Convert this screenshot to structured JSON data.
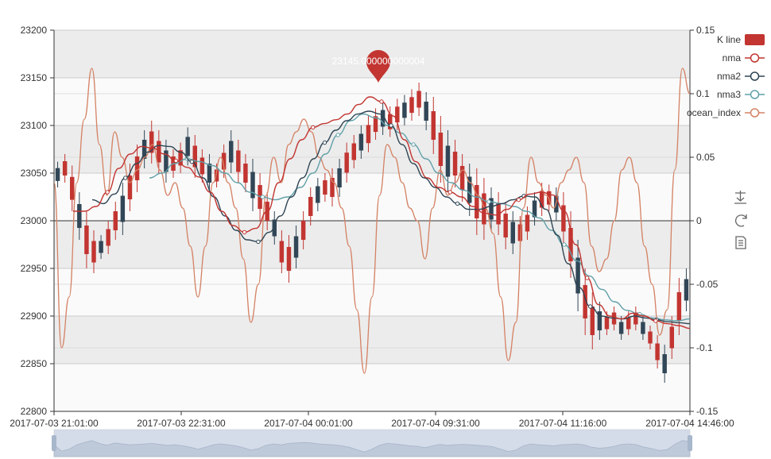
{
  "chart_data": {
    "type": "line",
    "x_ticks": [
      "2017-07-03 21:01:00",
      "2017-07-03 22:31:00",
      "2017-07-04 00:01:00",
      "2017-07-04 09:31:00",
      "2017-07-04 11:16:00",
      "2017-07-04 14:46:00"
    ],
    "y_left": {
      "min": 22800,
      "max": 23200,
      "ticks": [
        22800,
        22850,
        22900,
        22950,
        23000,
        23050,
        23100,
        23150,
        23200
      ]
    },
    "y_right": {
      "min": -0.15,
      "max": 0.15,
      "ticks": [
        "-0.15",
        "-0.1",
        "-0.05",
        "0",
        "0.05",
        "0.1",
        "0.15"
      ]
    },
    "grid": true,
    "legend": [
      {
        "name": "K line",
        "color": "#c23531",
        "shape": "rect"
      },
      {
        "name": "nma",
        "color": "#c23531",
        "shape": "line"
      },
      {
        "name": "nma2",
        "color": "#2f4554",
        "shape": "line"
      },
      {
        "name": "nma3",
        "color": "#61a0a8",
        "shape": "line"
      },
      {
        "name": "ocean_index",
        "color": "#d48265",
        "shape": "line"
      }
    ],
    "marker": {
      "label": "23145.000000000004",
      "index_fraction": 0.51,
      "value": 23145,
      "color": "#c23531"
    },
    "candles_high_low": [
      [
        23062,
        23035
      ],
      [
        23070,
        23040
      ],
      [
        23058,
        23010
      ],
      [
        23030,
        22980
      ],
      [
        23010,
        22950
      ],
      [
        22990,
        22945
      ],
      [
        22985,
        22960
      ],
      [
        23000,
        22965
      ],
      [
        23020,
        22980
      ],
      [
        23040,
        22985
      ],
      [
        23060,
        23010
      ],
      [
        23080,
        23030
      ],
      [
        23095,
        23055
      ],
      [
        23105,
        23060
      ],
      [
        23095,
        23050
      ],
      [
        23085,
        23040
      ],
      [
        23075,
        23045
      ],
      [
        23082,
        23050
      ],
      [
        23098,
        23058
      ],
      [
        23090,
        23045
      ],
      [
        23075,
        23040
      ],
      [
        23070,
        23030
      ],
      [
        23060,
        23035
      ],
      [
        23080,
        23045
      ],
      [
        23095,
        23050
      ],
      [
        23085,
        23040
      ],
      [
        23070,
        23030
      ],
      [
        23065,
        23010
      ],
      [
        23050,
        23000
      ],
      [
        23030,
        22990
      ],
      [
        23010,
        22975
      ],
      [
        22990,
        22945
      ],
      [
        22985,
        22935
      ],
      [
        22995,
        22950
      ],
      [
        23010,
        22970
      ],
      [
        23035,
        22995
      ],
      [
        23045,
        23010
      ],
      [
        23050,
        23020
      ],
      [
        23055,
        23015
      ],
      [
        23065,
        23025
      ],
      [
        23082,
        23040
      ],
      [
        23090,
        23055
      ],
      [
        23100,
        23065
      ],
      [
        23110,
        23072
      ],
      [
        23118,
        23085
      ],
      [
        23125,
        23090
      ],
      [
        23120,
        23088
      ],
      [
        23128,
        23095
      ],
      [
        23132,
        23100
      ],
      [
        23138,
        23105
      ],
      [
        23145,
        23110
      ],
      [
        23135,
        23095
      ],
      [
        23130,
        23070
      ],
      [
        23110,
        23040
      ],
      [
        23095,
        23030
      ],
      [
        23085,
        23035
      ],
      [
        23070,
        23020
      ],
      [
        23060,
        23005
      ],
      [
        23055,
        22985
      ],
      [
        23045,
        22980
      ],
      [
        23035,
        22990
      ],
      [
        23030,
        22985
      ],
      [
        23020,
        22970
      ],
      [
        23010,
        22965
      ],
      [
        23005,
        22970
      ],
      [
        23015,
        22980
      ],
      [
        23030,
        22995
      ],
      [
        23040,
        23005
      ],
      [
        23038,
        23010
      ],
      [
        23035,
        23000
      ],
      [
        23030,
        22975
      ],
      [
        23010,
        22940
      ],
      [
        22980,
        22905
      ],
      [
        22950,
        22880
      ],
      [
        22925,
        22865
      ],
      [
        22915,
        22875
      ],
      [
        22905,
        22880
      ],
      [
        22910,
        22885
      ],
      [
        22900,
        22875
      ],
      [
        22905,
        22880
      ],
      [
        22910,
        22885
      ],
      [
        22900,
        22875
      ],
      [
        22890,
        22865
      ],
      [
        22880,
        22845
      ],
      [
        22870,
        22830
      ],
      [
        22900,
        22855
      ],
      [
        22940,
        22880
      ],
      [
        22950,
        22905
      ]
    ],
    "nma": [
      23010,
      23010,
      23015,
      23030,
      23055,
      23070,
      23078,
      23076,
      23070,
      23063,
      23056,
      23046,
      23030,
      23010,
      22995,
      22988,
      22992,
      23010,
      23040,
      23065,
      23085,
      23098,
      23102,
      23106,
      23112,
      23122,
      23130,
      23125,
      23110,
      23085,
      23062,
      23045,
      23035,
      23030,
      23025,
      23015,
      23008,
      23006,
      23012,
      23022,
      23028,
      23030,
      23027,
      23010,
      22975,
      22940,
      22912,
      22900,
      22897,
      22903,
      22900,
      22895,
      22892,
      22890,
      22887
    ],
    "nma2": [
      23022,
      23018,
      23028,
      23045,
      23060,
      23072,
      23079,
      23078,
      23072,
      23062,
      23045,
      23025,
      23005,
      22990,
      22980,
      22978,
      22988,
      23005,
      23025,
      23045,
      23065,
      23082,
      23095,
      23105,
      23112,
      23115,
      23112,
      23100,
      23080,
      23060,
      23045,
      23035,
      23025,
      23018,
      23012,
      23012,
      23015,
      23018,
      23022,
      23026,
      23025,
      23012,
      22985,
      22955,
      22930,
      22910,
      22900,
      22898,
      22897,
      22900,
      22898,
      22896,
      22894,
      22893,
      22892
    ],
    "nma3": [
      23045,
      23050,
      23060,
      23065,
      23062,
      23058,
      23050,
      23040,
      23030,
      23025,
      23022,
      23025,
      23035,
      23050,
      23070,
      23090,
      23105,
      23112,
      23108,
      23100,
      23092,
      23080,
      23065,
      23050,
      23040,
      23032,
      23025,
      23020,
      23018,
      23015,
      23010,
      23003,
      22990,
      22975,
      22958,
      22942,
      22928,
      22915,
      22906,
      22902,
      22898,
      22896,
      22895,
      22897
    ],
    "ocean_index": [
      0.03,
      -0.1,
      -0.06,
      0.03,
      0.08,
      0.12,
      0.06,
      0.02,
      0.07,
      0.05,
      0.03,
      0.04,
      0.05,
      0.06,
      0.04,
      0.02,
      0.03,
      0.01,
      -0.02,
      -0.06,
      -0.02,
      0.03,
      0.05,
      0.03,
      0.01,
      -0.03,
      -0.08,
      -0.05,
      0.02,
      0.05,
      0.03,
      0.06,
      0.07,
      0.08,
      0.07,
      0.05,
      0.04,
      0.03,
      0.01,
      -0.02,
      -0.07,
      -0.12,
      -0.06,
      0.02,
      0.06,
      0.05,
      0.03,
      0.01,
      0.0,
      -0.03,
      0.01,
      0.04,
      0.02,
      0.03,
      0.04,
      0.03,
      0.02,
      0.01,
      -0.01,
      -0.06,
      -0.11,
      -0.08,
      0.01,
      0.05,
      0.03,
      0.02,
      0.01,
      0.03,
      0.04,
      0.05,
      0.03,
      -0.02,
      -0.04,
      -0.03,
      0.0,
      0.04,
      0.05,
      0.03,
      -0.02,
      -0.05,
      -0.09,
      -0.07,
      0.04,
      0.12,
      0.1
    ]
  },
  "toolbox": [
    {
      "icon": "download-icon"
    },
    {
      "icon": "refresh-icon"
    },
    {
      "icon": "data-view-icon"
    }
  ]
}
